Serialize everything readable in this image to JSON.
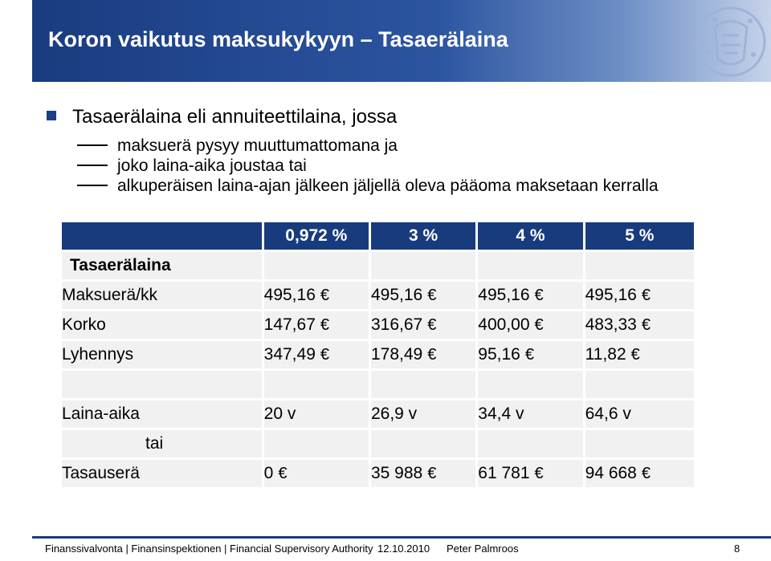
{
  "title": "Koron vaikutus maksukykyyn – Tasaerälaina",
  "bullet": "Tasaerälaina eli annuiteettilaina, jossa",
  "subbullets": [
    "maksuerä pysyy muuttumattomana ja",
    "joko laina-aika joustaa tai",
    "alkuperäisen laina-ajan jälkeen jäljellä oleva pääoma maksetaan kerralla"
  ],
  "table": {
    "headers": [
      "0,972 %",
      "3 %",
      "4 %",
      "5 %"
    ],
    "section_label": "Tasaerälaina",
    "euro_symbol": "€",
    "rows": [
      {
        "label": "Maksuerä/kk",
        "values": [
          "495,16",
          "495,16",
          "495,16",
          "495,16"
        ]
      },
      {
        "label": "Korko",
        "values": [
          "147,67",
          "316,67",
          "400,00",
          "483,33"
        ]
      },
      {
        "label": "Lyhennys",
        "values": [
          "347,49",
          "178,49",
          "95,16",
          "11,82"
        ]
      }
    ],
    "term_row": {
      "label": "Laina-aika",
      "values": [
        "20 v",
        "26,9 v",
        "34,4 v",
        "64,6 v"
      ]
    },
    "or_label": "tai",
    "final_row": {
      "label": "Tasauserä",
      "values": [
        "0",
        "35 988",
        "61 781",
        "94 668"
      ]
    }
  },
  "footer": {
    "org": "Finanssivalvonta | Finansinspektionen | Financial Supervisory Authority",
    "date": "12.10.2010",
    "author": "Peter Palmroos",
    "page": "8"
  },
  "colors": {
    "title_bar": "#193c80",
    "header_cell": "#183b7e",
    "row_band": "#f1f1f1"
  }
}
